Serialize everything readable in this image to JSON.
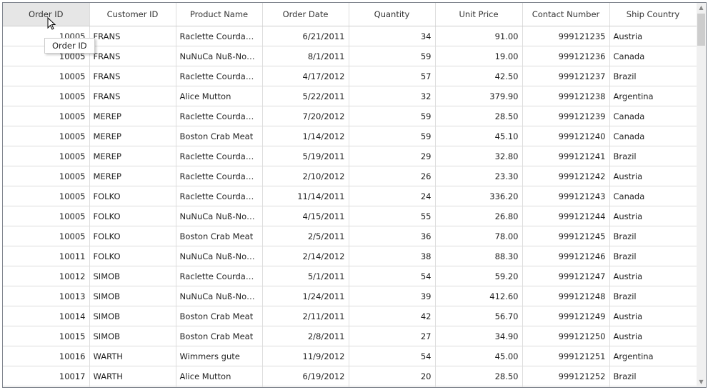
{
  "columns": [
    "Order ID",
    "Customer ID",
    "Product Name",
    "Order Date",
    "Quantity",
    "Unit Price",
    "Contact Number",
    "Ship Country"
  ],
  "tooltip": "Order ID",
  "rows": [
    [
      "10005",
      "FRANS",
      "Raclette  Courdava...",
      "6/21/2011",
      "34",
      "91.00",
      "999121235",
      "Austria"
    ],
    [
      "10005",
      "FRANS",
      "NuNuCa  Nuß-Nou...",
      "8/1/2011",
      "59",
      "19.00",
      "999121236",
      "Canada"
    ],
    [
      "10005",
      "FRANS",
      "Raclette  Courdava...",
      "4/17/2012",
      "57",
      "42.50",
      "999121237",
      "Brazil"
    ],
    [
      "10005",
      "FRANS",
      "Alice Mutton",
      "5/22/2011",
      "32",
      "379.90",
      "999121238",
      "Argentina"
    ],
    [
      "10005",
      "MEREP",
      "Raclette  Courdava...",
      "7/20/2012",
      "59",
      "28.50",
      "999121239",
      "Canada"
    ],
    [
      "10005",
      "MEREP",
      "Boston Crab Meat",
      "1/14/2012",
      "59",
      "45.10",
      "999121240",
      "Canada"
    ],
    [
      "10005",
      "MEREP",
      "Raclette  Courdava...",
      "5/19/2011",
      "29",
      "32.80",
      "999121241",
      "Brazil"
    ],
    [
      "10005",
      "MEREP",
      "Raclette  Courdava...",
      "2/10/2012",
      "26",
      "23.30",
      "999121242",
      "Austria"
    ],
    [
      "10005",
      "FOLKO",
      "Raclette  Courdava...",
      "11/14/2011",
      "24",
      "336.20",
      "999121243",
      "Canada"
    ],
    [
      "10005",
      "FOLKO",
      "NuNuCa  Nuß-Nou...",
      "4/15/2011",
      "55",
      "26.80",
      "999121244",
      "Austria"
    ],
    [
      "10005",
      "FOLKO",
      "Boston Crab Meat",
      "2/5/2011",
      "36",
      "78.00",
      "999121245",
      "Brazil"
    ],
    [
      "10011",
      "FOLKO",
      "NuNuCa  Nuß-Nou...",
      "2/14/2012",
      "38",
      "88.30",
      "999121246",
      "Brazil"
    ],
    [
      "10012",
      "SIMOB",
      "Raclette  Courdava...",
      "5/1/2011",
      "54",
      "59.20",
      "999121247",
      "Austria"
    ],
    [
      "10013",
      "SIMOB",
      "NuNuCa  Nuß-Nou...",
      "1/24/2011",
      "39",
      "412.60",
      "999121248",
      "Brazil"
    ],
    [
      "10014",
      "SIMOB",
      "Boston Crab Meat",
      "2/11/2011",
      "42",
      "56.70",
      "999121249",
      "Austria"
    ],
    [
      "10015",
      "SIMOB",
      "Boston Crab Meat",
      "2/8/2011",
      "27",
      "34.90",
      "999121250",
      "Austria"
    ],
    [
      "10016",
      "WARTH",
      "Wimmers gute",
      "11/9/2012",
      "54",
      "45.00",
      "999121251",
      "Argentina"
    ],
    [
      "10017",
      "WARTH",
      "Alice Mutton",
      "6/19/2012",
      "20",
      "28.50",
      "999121252",
      "Brazil"
    ],
    [
      "",
      "",
      "",
      "",
      "",
      "",
      "",
      ""
    ]
  ]
}
